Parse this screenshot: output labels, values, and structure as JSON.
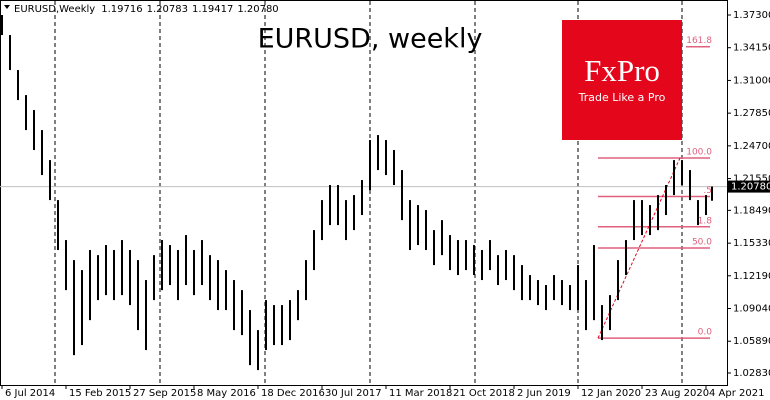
{
  "chart_data": {
    "type": "hl_bar",
    "title": "EURUSD, weekly",
    "header": {
      "symbol": "EURUSD,Weekly",
      "open": "1.19716",
      "high": "1.20783",
      "low": "1.19417",
      "close": "1.20780"
    },
    "color": "#000000",
    "x": [
      0,
      4,
      8,
      12,
      16,
      20,
      24,
      28,
      32,
      36,
      40,
      44,
      48,
      52,
      56,
      60,
      64,
      68,
      72,
      76,
      80,
      84,
      88,
      92,
      96,
      100,
      104,
      108,
      112,
      116,
      120,
      124,
      128,
      132,
      136,
      140,
      144,
      148,
      152,
      156,
      160,
      164,
      168,
      172,
      176,
      180,
      184,
      188,
      192,
      196,
      200,
      204,
      208,
      212,
      216,
      220,
      224,
      228,
      232,
      236,
      240,
      244,
      248,
      252,
      256,
      260,
      264,
      268,
      272,
      276,
      280,
      284,
      288,
      292,
      296,
      300,
      304,
      308,
      312,
      316,
      320,
      324,
      328,
      332,
      336,
      340,
      344,
      348,
      352,
      355
    ],
    "high": [
      1.373,
      1.3537,
      1.32,
      1.2959,
      1.2815,
      1.2622,
      1.2333,
      1.1948,
      1.1563,
      1.137,
      1.1274,
      1.1467,
      1.1418,
      1.1515,
      1.1467,
      1.1563,
      1.1467,
      1.137,
      1.1178,
      1.1418,
      1.1563,
      1.1515,
      1.1467,
      1.1611,
      1.1467,
      1.1563,
      1.1418,
      1.137,
      1.1274,
      1.1178,
      1.1081,
      1.0889,
      1.0696,
      1.0985,
      1.0937,
      1.0937,
      1.0985,
      1.1081,
      1.137,
      1.1659,
      1.1948,
      1.2093,
      1.2093,
      1.1948,
      1.1996,
      1.2141,
      1.2526,
      1.2574,
      1.2526,
      1.243,
      1.2237,
      1.1948,
      1.19,
      1.1852,
      1.1659,
      1.1755,
      1.1611,
      1.1563,
      1.1563,
      1.1515,
      1.1467,
      1.1563,
      1.1418,
      1.1467,
      1.1418,
      1.1322,
      1.1226,
      1.1178,
      1.113,
      1.1226,
      1.1178,
      1.113,
      1.1322,
      1.1178,
      1.1515,
      1.0937,
      1.1033,
      1.137,
      1.1563,
      1.1948,
      1.1948,
      1.19,
      1.1996,
      1.2093,
      1.2333,
      1.2333,
      1.2237,
      1.1948,
      1.1996,
      1.20783
    ],
    "low": [
      1.3537,
      1.32,
      1.2911,
      1.2622,
      1.243,
      1.2189,
      1.1948,
      1.1467,
      1.1081,
      1.0455,
      1.0552,
      1.0792,
      1.0985,
      1.1033,
      1.0985,
      1.1033,
      1.0937,
      1.0696,
      1.0504,
      1.0985,
      1.1081,
      1.113,
      1.0985,
      1.113,
      1.1033,
      1.113,
      1.0985,
      1.0889,
      1.0889,
      1.0696,
      1.0648,
      1.0359,
      1.0311,
      1.0504,
      1.0552,
      1.0552,
      1.06,
      1.0792,
      1.0985,
      1.1274,
      1.1563,
      1.1707,
      1.1707,
      1.1563,
      1.1659,
      1.1804,
      1.2044,
      1.2237,
      1.2189,
      1.2093,
      1.1755,
      1.1467,
      1.1515,
      1.1467,
      1.1322,
      1.1418,
      1.1274,
      1.1226,
      1.1274,
      1.1226,
      1.1178,
      1.1274,
      1.113,
      1.1178,
      1.1081,
      1.0985,
      1.0985,
      1.0937,
      1.0889,
      1.0985,
      1.0937,
      1.0889,
      1.0889,
      1.0696,
      1.0792,
      1.06,
      1.0696,
      1.0985,
      1.1226,
      1.1563,
      1.1611,
      1.1611,
      1.1659,
      1.1804,
      1.1996,
      1.2093,
      1.1948,
      1.1707,
      1.1804,
      1.19417
    ],
    "xlim": [
      -1,
      362.5
    ],
    "ylim": [
      1.01675,
      1.38744
    ],
    "xticks": [
      {
        "value": 0,
        "label": "6 Jul 2014"
      },
      {
        "value": 32,
        "label": "15 Feb 2015"
      },
      {
        "value": 64,
        "label": "27 Sep 2015"
      },
      {
        "value": 96,
        "label": "8 May 2016"
      },
      {
        "value": 128,
        "label": "18 Dec 2016"
      },
      {
        "value": 160,
        "label": "30 Jul 2017"
      },
      {
        "value": 192,
        "label": "11 Mar 2018"
      },
      {
        "value": 224,
        "label": "21 Oct 2018"
      },
      {
        "value": 256,
        "label": "2 Jun 2019"
      },
      {
        "value": 288,
        "label": "12 Jan 2020"
      },
      {
        "value": 320,
        "label": "23 Aug 2020"
      },
      {
        "value": 352,
        "label": "4 Apr 2021"
      }
    ],
    "yticks": [
      {
        "value": 1.373,
        "label": "1.37300"
      },
      {
        "value": 1.3415,
        "label": "1.34150"
      },
      {
        "value": 1.31,
        "label": "1.31000"
      },
      {
        "value": 1.2785,
        "label": "1.27850"
      },
      {
        "value": 1.247,
        "label": "1.24700"
      },
      {
        "value": 1.2155,
        "label": "1.21550"
      },
      {
        "value": 1.1849,
        "label": "1.18490"
      },
      {
        "value": 1.1533,
        "label": "1.15330"
      },
      {
        "value": 1.1219,
        "label": "1.12190"
      },
      {
        "value": 1.0904,
        "label": "1.09040"
      },
      {
        "value": 1.0589,
        "label": "1.05890"
      },
      {
        "value": 1.0283,
        "label": "1.02830"
      }
    ],
    "price_line": {
      "value": 1.2078,
      "label": "1.20780"
    },
    "fib": {
      "color": "#e0607e",
      "low": 1.0619,
      "high": 1.2353,
      "x_start": 298,
      "x_end": 354,
      "x_low": 298,
      "x_high": 339,
      "levels": [
        {
          "value": 0,
          "label": "0.0"
        },
        {
          "value": 50,
          "label": "50.0"
        },
        {
          "value": 61.8,
          "label": "1.8"
        },
        {
          "value": 78.6,
          "label": ".5"
        },
        {
          "value": 100,
          "label": "100.0"
        },
        161.8
      ]
    }
  },
  "logo": {
    "brand": "FxPro",
    "tagline": "Trade Like a Pro"
  }
}
